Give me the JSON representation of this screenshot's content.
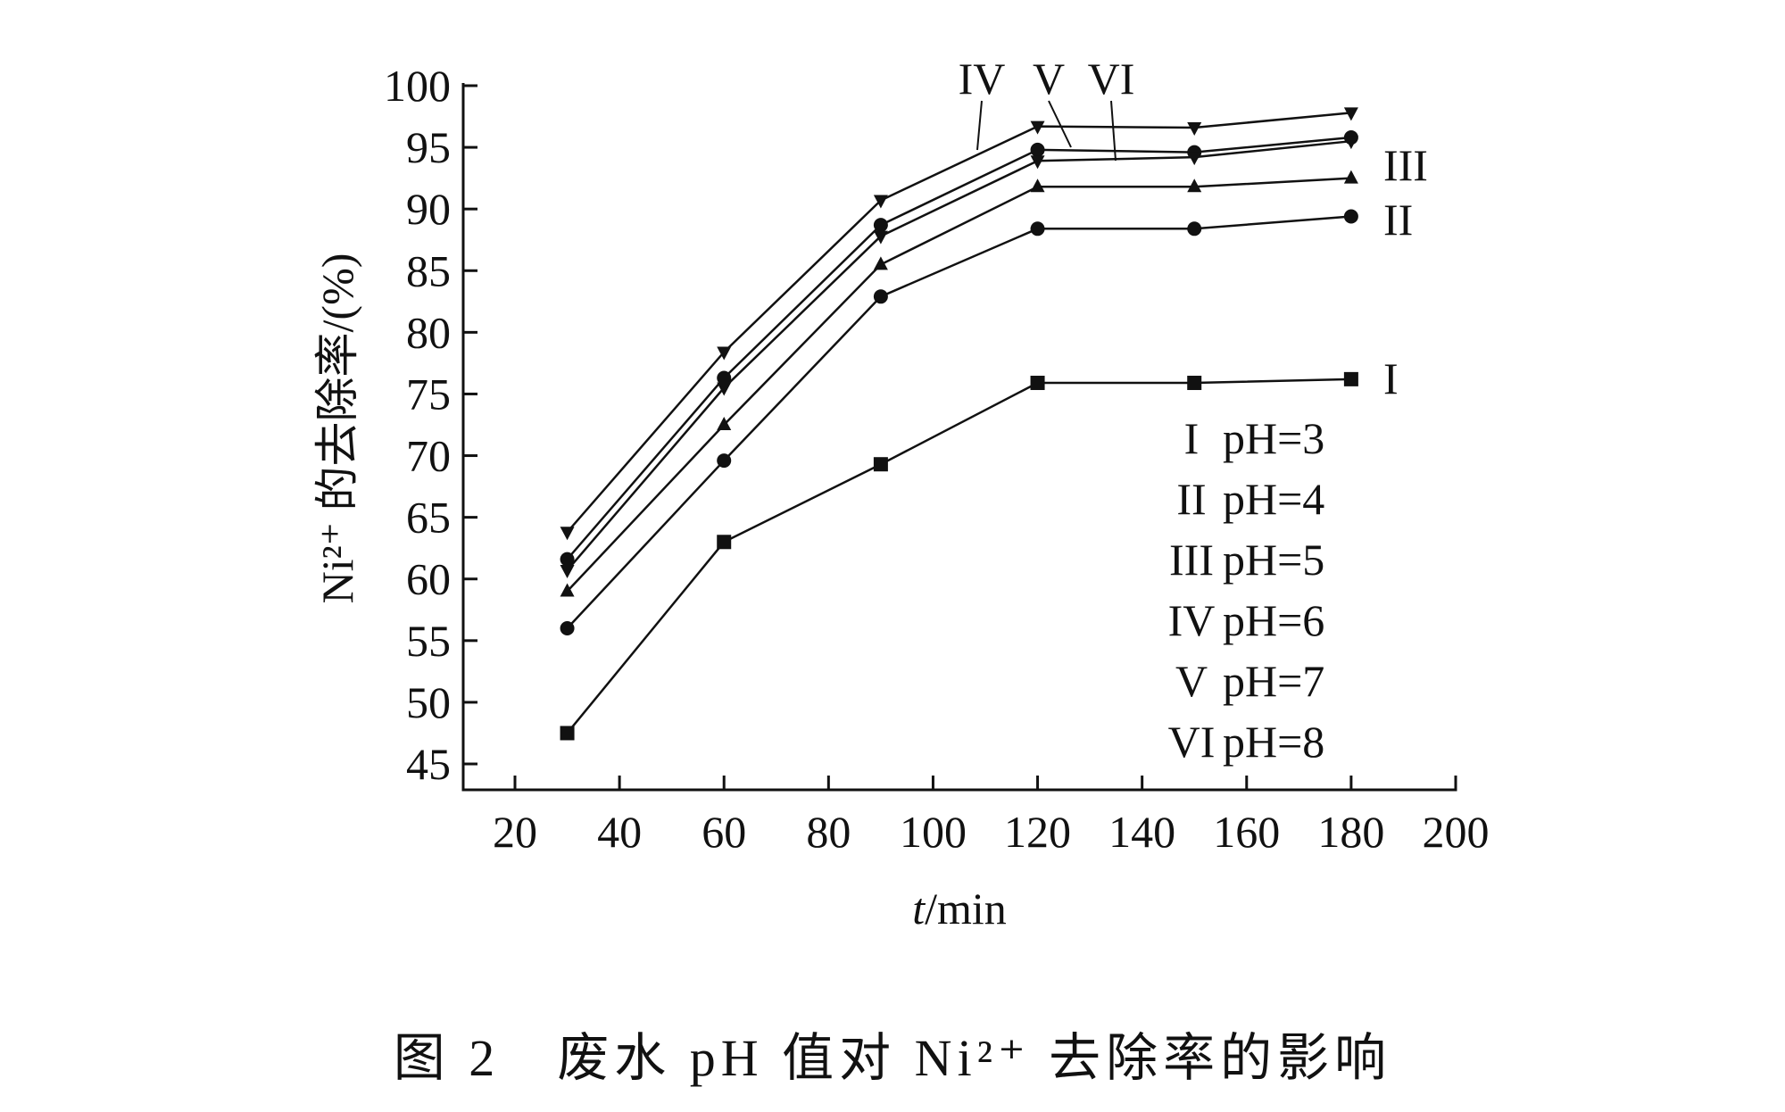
{
  "chart_data": {
    "type": "line",
    "title": "",
    "xlabel_italic": "t",
    "xlabel_rest": "/min",
    "ylabel": "Ni²⁺ 的去除率/(%)",
    "xlim": [
      20,
      200
    ],
    "ylim": [
      45,
      100
    ],
    "xticks": [
      20,
      40,
      60,
      80,
      100,
      120,
      140,
      160,
      180,
      200
    ],
    "yticks": [
      45,
      50,
      55,
      60,
      65,
      70,
      75,
      80,
      85,
      90,
      95,
      100
    ],
    "grid": false,
    "x": [
      30,
      60,
      90,
      120,
      150,
      180
    ],
    "series": [
      {
        "name": "I",
        "legend": "pH=3",
        "marker": "square",
        "values": [
          47.5,
          63.0,
          69.3,
          75.9,
          75.9,
          76.2
        ]
      },
      {
        "name": "II",
        "legend": "pH=4",
        "marker": "circle",
        "values": [
          56.0,
          69.6,
          82.9,
          88.4,
          88.4,
          89.4
        ]
      },
      {
        "name": "III",
        "legend": "pH=5",
        "marker": "triangle-up",
        "values": [
          59.0,
          72.5,
          85.5,
          91.8,
          91.8,
          92.5
        ]
      },
      {
        "name": "IV",
        "legend": "pH=6",
        "marker": "triangle-down",
        "values": [
          63.8,
          78.4,
          90.7,
          96.7,
          96.6,
          97.8
        ]
      },
      {
        "name": "V",
        "legend": "pH=7",
        "marker": "circle",
        "values": [
          61.6,
          76.3,
          88.7,
          94.8,
          94.6,
          95.8
        ]
      },
      {
        "name": "VI",
        "legend": "pH=8",
        "marker": "triangle-down",
        "values": [
          60.7,
          75.5,
          87.8,
          93.9,
          94.2,
          95.5
        ]
      }
    ],
    "legend_placement": "bottom-right",
    "caption": "图 2　废水 pH 值对 Ni²⁺ 去除率的影响"
  }
}
